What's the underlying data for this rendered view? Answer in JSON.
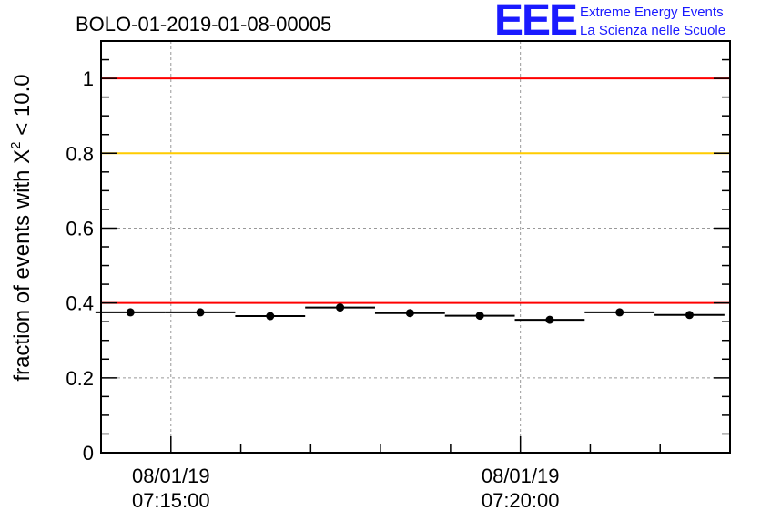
{
  "header": {
    "title": "BOLO-01-2019-01-08-00005"
  },
  "logo": {
    "acronym": "EEE",
    "line1": "Extreme Energy Events",
    "line2": "La Scienza nelle Scuole",
    "color": "#1a1aff"
  },
  "chart_data": {
    "type": "scatter",
    "title": "BOLO-01-2019-01-08-00005",
    "ylabel_prefix": "fraction of events with ",
    "ylabel_symbol": "X",
    "ylabel_sup": "2",
    "ylabel_suffix": " < 10.0",
    "xlabel": "",
    "ylim": [
      0,
      1.1
    ],
    "yticks": [
      0,
      0.2,
      0.4,
      0.6,
      0.8,
      1
    ],
    "ytick_labels": [
      "0",
      "0.2",
      "0.4",
      "0.6",
      "0.8",
      "1"
    ],
    "xlim_minutes": [
      -1.0,
      8.0
    ],
    "xticks": [
      {
        "minutes": 0,
        "date": "08/01/19",
        "time": "07:15:00"
      },
      {
        "minutes": 5,
        "date": "08/01/19",
        "time": "07:20:00"
      }
    ],
    "grid": true,
    "points": [
      {
        "x_center_minutes": -0.58,
        "half_width_minutes": 0.5,
        "y": 0.375
      },
      {
        "x_center_minutes": 0.42,
        "half_width_minutes": 0.5,
        "y": 0.375
      },
      {
        "x_center_minutes": 1.42,
        "half_width_minutes": 0.5,
        "y": 0.365
      },
      {
        "x_center_minutes": 2.42,
        "half_width_minutes": 0.5,
        "y": 0.388
      },
      {
        "x_center_minutes": 3.42,
        "half_width_minutes": 0.5,
        "y": 0.373
      },
      {
        "x_center_minutes": 4.42,
        "half_width_minutes": 0.5,
        "y": 0.366
      },
      {
        "x_center_minutes": 5.42,
        "half_width_minutes": 0.5,
        "y": 0.355
      },
      {
        "x_center_minutes": 6.42,
        "half_width_minutes": 0.5,
        "y": 0.375
      },
      {
        "x_center_minutes": 7.42,
        "half_width_minutes": 0.5,
        "y": 0.368
      }
    ],
    "reference_lines": [
      {
        "y": 1.0,
        "color": "#ff0000"
      },
      {
        "y": 0.8,
        "color": "#ffcc00"
      },
      {
        "y": 0.4,
        "color": "#ff0000"
      }
    ]
  }
}
